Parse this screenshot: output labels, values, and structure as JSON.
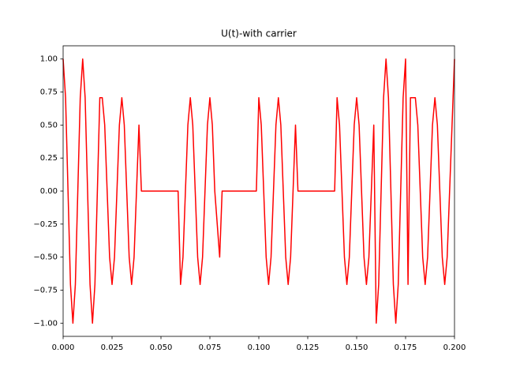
{
  "chart_data": {
    "type": "line",
    "title": "U(t)-with carrier",
    "x": [
      0,
      0.00125,
      0.0025,
      0.00375,
      0.005,
      0.00625,
      0.0075,
      0.00875,
      0.01,
      0.01125,
      0.0125,
      0.01375,
      0.015,
      0.01625,
      0.0175,
      0.01875,
      0.02,
      0.02125,
      0.0225,
      0.02375,
      0.025,
      0.02625,
      0.0275,
      0.02875,
      0.03,
      0.03125,
      0.0325,
      0.03375,
      0.035,
      0.03625,
      0.0375,
      0.03875,
      0.04,
      0.05875,
      0.06,
      0.06125,
      0.0625,
      0.06375,
      0.065,
      0.06625,
      0.0675,
      0.06875,
      0.07,
      0.07125,
      0.0725,
      0.07375,
      0.075,
      0.07625,
      0.0775,
      0.08,
      0.08125,
      0.09875,
      0.1,
      0.10125,
      0.1025,
      0.10375,
      0.105,
      0.10625,
      0.1075,
      0.10875,
      0.11,
      0.11125,
      0.1125,
      0.11375,
      0.115,
      0.11625,
      0.1175,
      0.11875,
      0.12,
      0.13875,
      0.14,
      0.14125,
      0.1425,
      0.14375,
      0.145,
      0.14625,
      0.1475,
      0.14875,
      0.15,
      0.15125,
      0.1525,
      0.15375,
      0.155,
      0.15625,
      0.1575,
      0.15875,
      0.16,
      0.16125,
      0.1625,
      0.16375,
      0.165,
      0.16625,
      0.1675,
      0.16875,
      0.17,
      0.17125,
      0.1725,
      0.17375,
      0.175,
      0.17625,
      0.1775,
      0.18,
      0.18125,
      0.1825,
      0.18375,
      0.185,
      0.18625,
      0.1875,
      0.18875,
      0.19,
      0.19125,
      0.1925,
      0.19375,
      0.195,
      0.19625,
      0.1975,
      0.19875,
      0.2
    ],
    "series": [
      {
        "name": "U(t)",
        "color": "#ff0000",
        "values": [
          1,
          0.707,
          0,
          -0.707,
          -1,
          -0.707,
          0,
          0.707,
          1,
          0.707,
          0,
          -0.707,
          -1,
          -0.707,
          0,
          0.707,
          0.707,
          0.5,
          0,
          -0.5,
          -0.707,
          -0.5,
          0,
          0.5,
          0.707,
          0.5,
          0,
          -0.5,
          -0.707,
          -0.5,
          0,
          0.5,
          0,
          0,
          -0.707,
          -0.5,
          0,
          0.5,
          0.707,
          0.5,
          0,
          -0.5,
          -0.707,
          -0.5,
          0,
          0.5,
          0.707,
          0.5,
          0,
          -0.5,
          0,
          0,
          0.707,
          0.5,
          0,
          -0.5,
          -0.707,
          -0.5,
          0,
          0.5,
          0.707,
          0.5,
          0,
          -0.5,
          -0.707,
          -0.5,
          0,
          0.5,
          0,
          0,
          0.707,
          0.5,
          0,
          -0.5,
          -0.707,
          -0.5,
          0,
          0.5,
          0.707,
          0.5,
          0,
          -0.5,
          -0.707,
          -0.5,
          0,
          0.5,
          -1,
          -0.707,
          0,
          0.707,
          1,
          0.707,
          0,
          -0.707,
          -1,
          -0.707,
          0,
          0.707,
          1,
          -0.707,
          0.707,
          0.707,
          0.5,
          0,
          -0.5,
          -0.707,
          -0.5,
          0,
          0.5,
          0.707,
          0.5,
          0,
          -0.5,
          -0.707,
          -0.5,
          0,
          0.5,
          1
        ]
      }
    ],
    "xlim": [
      0,
      0.2
    ],
    "ylim": [
      -1.1,
      1.1
    ],
    "xticks": [
      {
        "value": 0,
        "label": "0.000"
      },
      {
        "value": 0.025,
        "label": "0.025"
      },
      {
        "value": 0.05,
        "label": "0.050"
      },
      {
        "value": 0.075,
        "label": "0.075"
      },
      {
        "value": 0.1,
        "label": "0.100"
      },
      {
        "value": 0.125,
        "label": "0.125"
      },
      {
        "value": 0.15,
        "label": "0.150"
      },
      {
        "value": 0.175,
        "label": "0.175"
      },
      {
        "value": 0.2,
        "label": "0.200"
      }
    ],
    "yticks": [
      {
        "value": -1,
        "label": "−1.00"
      },
      {
        "value": -0.75,
        "label": "−0.75"
      },
      {
        "value": -0.5,
        "label": "−0.50"
      },
      {
        "value": -0.25,
        "label": "−0.25"
      },
      {
        "value": 0,
        "label": "0.00"
      },
      {
        "value": 0.25,
        "label": "0.25"
      },
      {
        "value": 0.5,
        "label": "0.50"
      },
      {
        "value": 0.75,
        "label": "0.75"
      },
      {
        "value": 1,
        "label": "1.00"
      }
    ],
    "grid": false
  }
}
